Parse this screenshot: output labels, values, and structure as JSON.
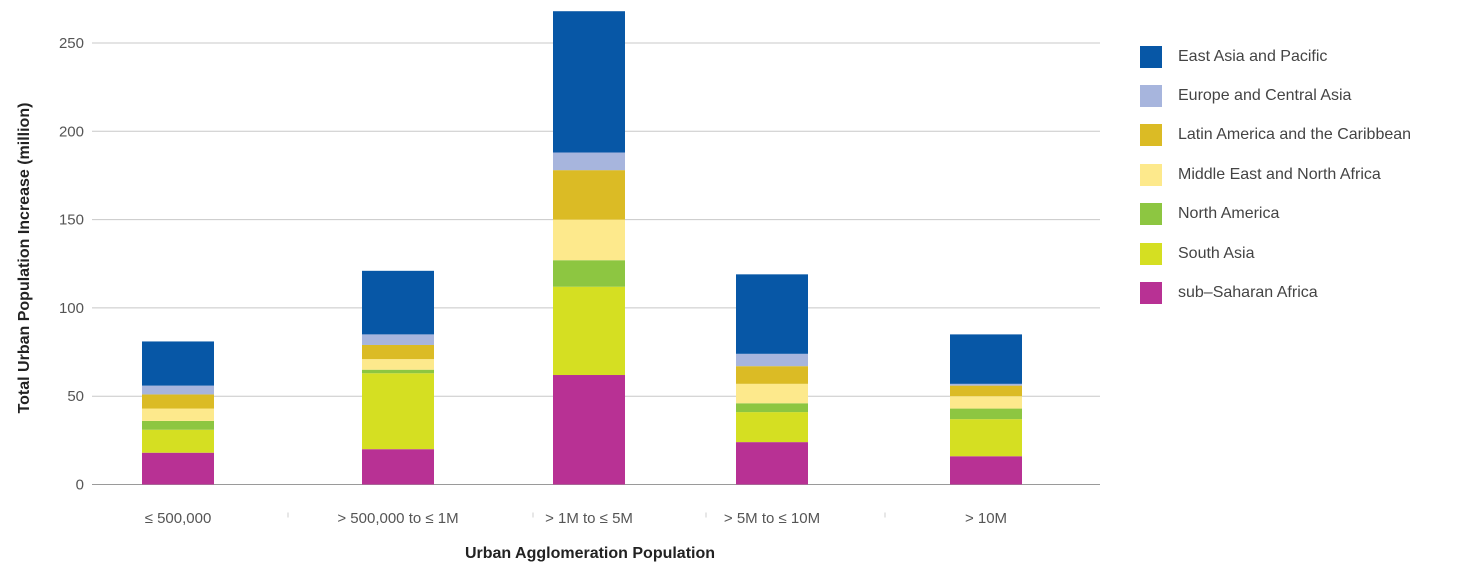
{
  "chart_data": {
    "type": "bar",
    "stacked": true,
    "xlabel": "Urban Agglomeration Population",
    "ylabel": "Total Urban Population Increase (million)",
    "ylim": [
      0,
      270
    ],
    "yticks": [
      0,
      50,
      100,
      150,
      200,
      250
    ],
    "grid": true,
    "legend_position": "right",
    "categories": [
      "≤ 500,000",
      "> 500,000 to ≤ 1M",
      "> 1M to ≤ 5M",
      "> 5M to ≤ 10M",
      "> 10M"
    ],
    "series": [
      {
        "name": "sub–Saharan Africa",
        "color": "#b83194",
        "values": [
          18,
          20,
          62,
          24,
          16
        ]
      },
      {
        "name": "South Asia",
        "color": "#d5df22",
        "values": [
          13,
          43,
          50,
          17,
          21
        ]
      },
      {
        "name": "North America",
        "color": "#8dc641",
        "values": [
          5,
          2,
          15,
          5,
          6
        ]
      },
      {
        "name": "Middle East and North Africa",
        "color": "#fde98c",
        "values": [
          7,
          6,
          23,
          11,
          7
        ]
      },
      {
        "name": "Latin America and the Caribbean",
        "color": "#dbbb25",
        "values": [
          8,
          8,
          28,
          10,
          6
        ]
      },
      {
        "name": "Europe and Central Asia",
        "color": "#a7b5dd",
        "values": [
          5,
          6,
          10,
          7,
          1
        ]
      },
      {
        "name": "East Asia and Pacific",
        "color": "#0757a6",
        "values": [
          25,
          36,
          80,
          45,
          28
        ]
      }
    ]
  }
}
